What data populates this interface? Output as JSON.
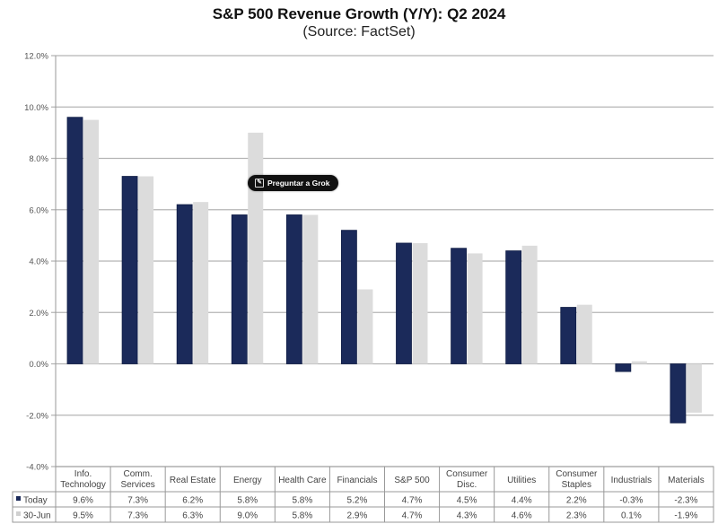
{
  "chart_data": {
    "type": "bar",
    "title": "S&P 500 Revenue Growth (Y/Y): Q2 2024",
    "subtitle": "(Source: FactSet)",
    "xlabel": "",
    "ylabel": "",
    "ylim": [
      -4.0,
      12.0
    ],
    "yticks": [
      12.0,
      10.0,
      8.0,
      6.0,
      4.0,
      2.0,
      0.0,
      -2.0,
      -4.0
    ],
    "ytick_labels": [
      "12.0%",
      "10.0%",
      "8.0%",
      "6.0%",
      "4.0%",
      "2.0%",
      "0.0%",
      "-2.0%",
      "-4.0%"
    ],
    "grid": true,
    "legend_placement": "data-table-left",
    "categories": [
      [
        "Info.",
        "Technology"
      ],
      [
        "Comm.",
        "Services"
      ],
      [
        "Real Estate"
      ],
      [
        "Energy"
      ],
      [
        "Health Care"
      ],
      [
        "Financials"
      ],
      [
        "S&P 500"
      ],
      [
        "Consumer",
        "Disc."
      ],
      [
        "Utilities"
      ],
      [
        "Consumer",
        "Staples"
      ],
      [
        "Industrials"
      ],
      [
        "Materials"
      ]
    ],
    "series": [
      {
        "name": "Today",
        "color": "#1b2a5a",
        "values": [
          9.6,
          7.3,
          6.2,
          5.8,
          5.8,
          5.2,
          4.7,
          4.5,
          4.4,
          2.2,
          -0.3,
          -2.3
        ],
        "labels": [
          "9.6%",
          "7.3%",
          "6.2%",
          "5.8%",
          "5.8%",
          "5.2%",
          "4.7%",
          "4.5%",
          "4.4%",
          "2.2%",
          "-0.3%",
          "-2.3%"
        ]
      },
      {
        "name": "30-Jun",
        "color": "#dcdcdc",
        "values": [
          9.5,
          7.3,
          6.3,
          9.0,
          5.8,
          2.9,
          4.7,
          4.3,
          4.6,
          2.3,
          0.1,
          -1.9
        ],
        "labels": [
          "9.5%",
          "7.3%",
          "6.3%",
          "9.0%",
          "5.8%",
          "2.9%",
          "4.7%",
          "4.3%",
          "4.6%",
          "2.3%",
          "0.1%",
          "-1.9%"
        ]
      }
    ]
  },
  "overlay": {
    "grok_button_label": "Preguntar a Grok",
    "grok_icon": "edit-square-icon"
  }
}
